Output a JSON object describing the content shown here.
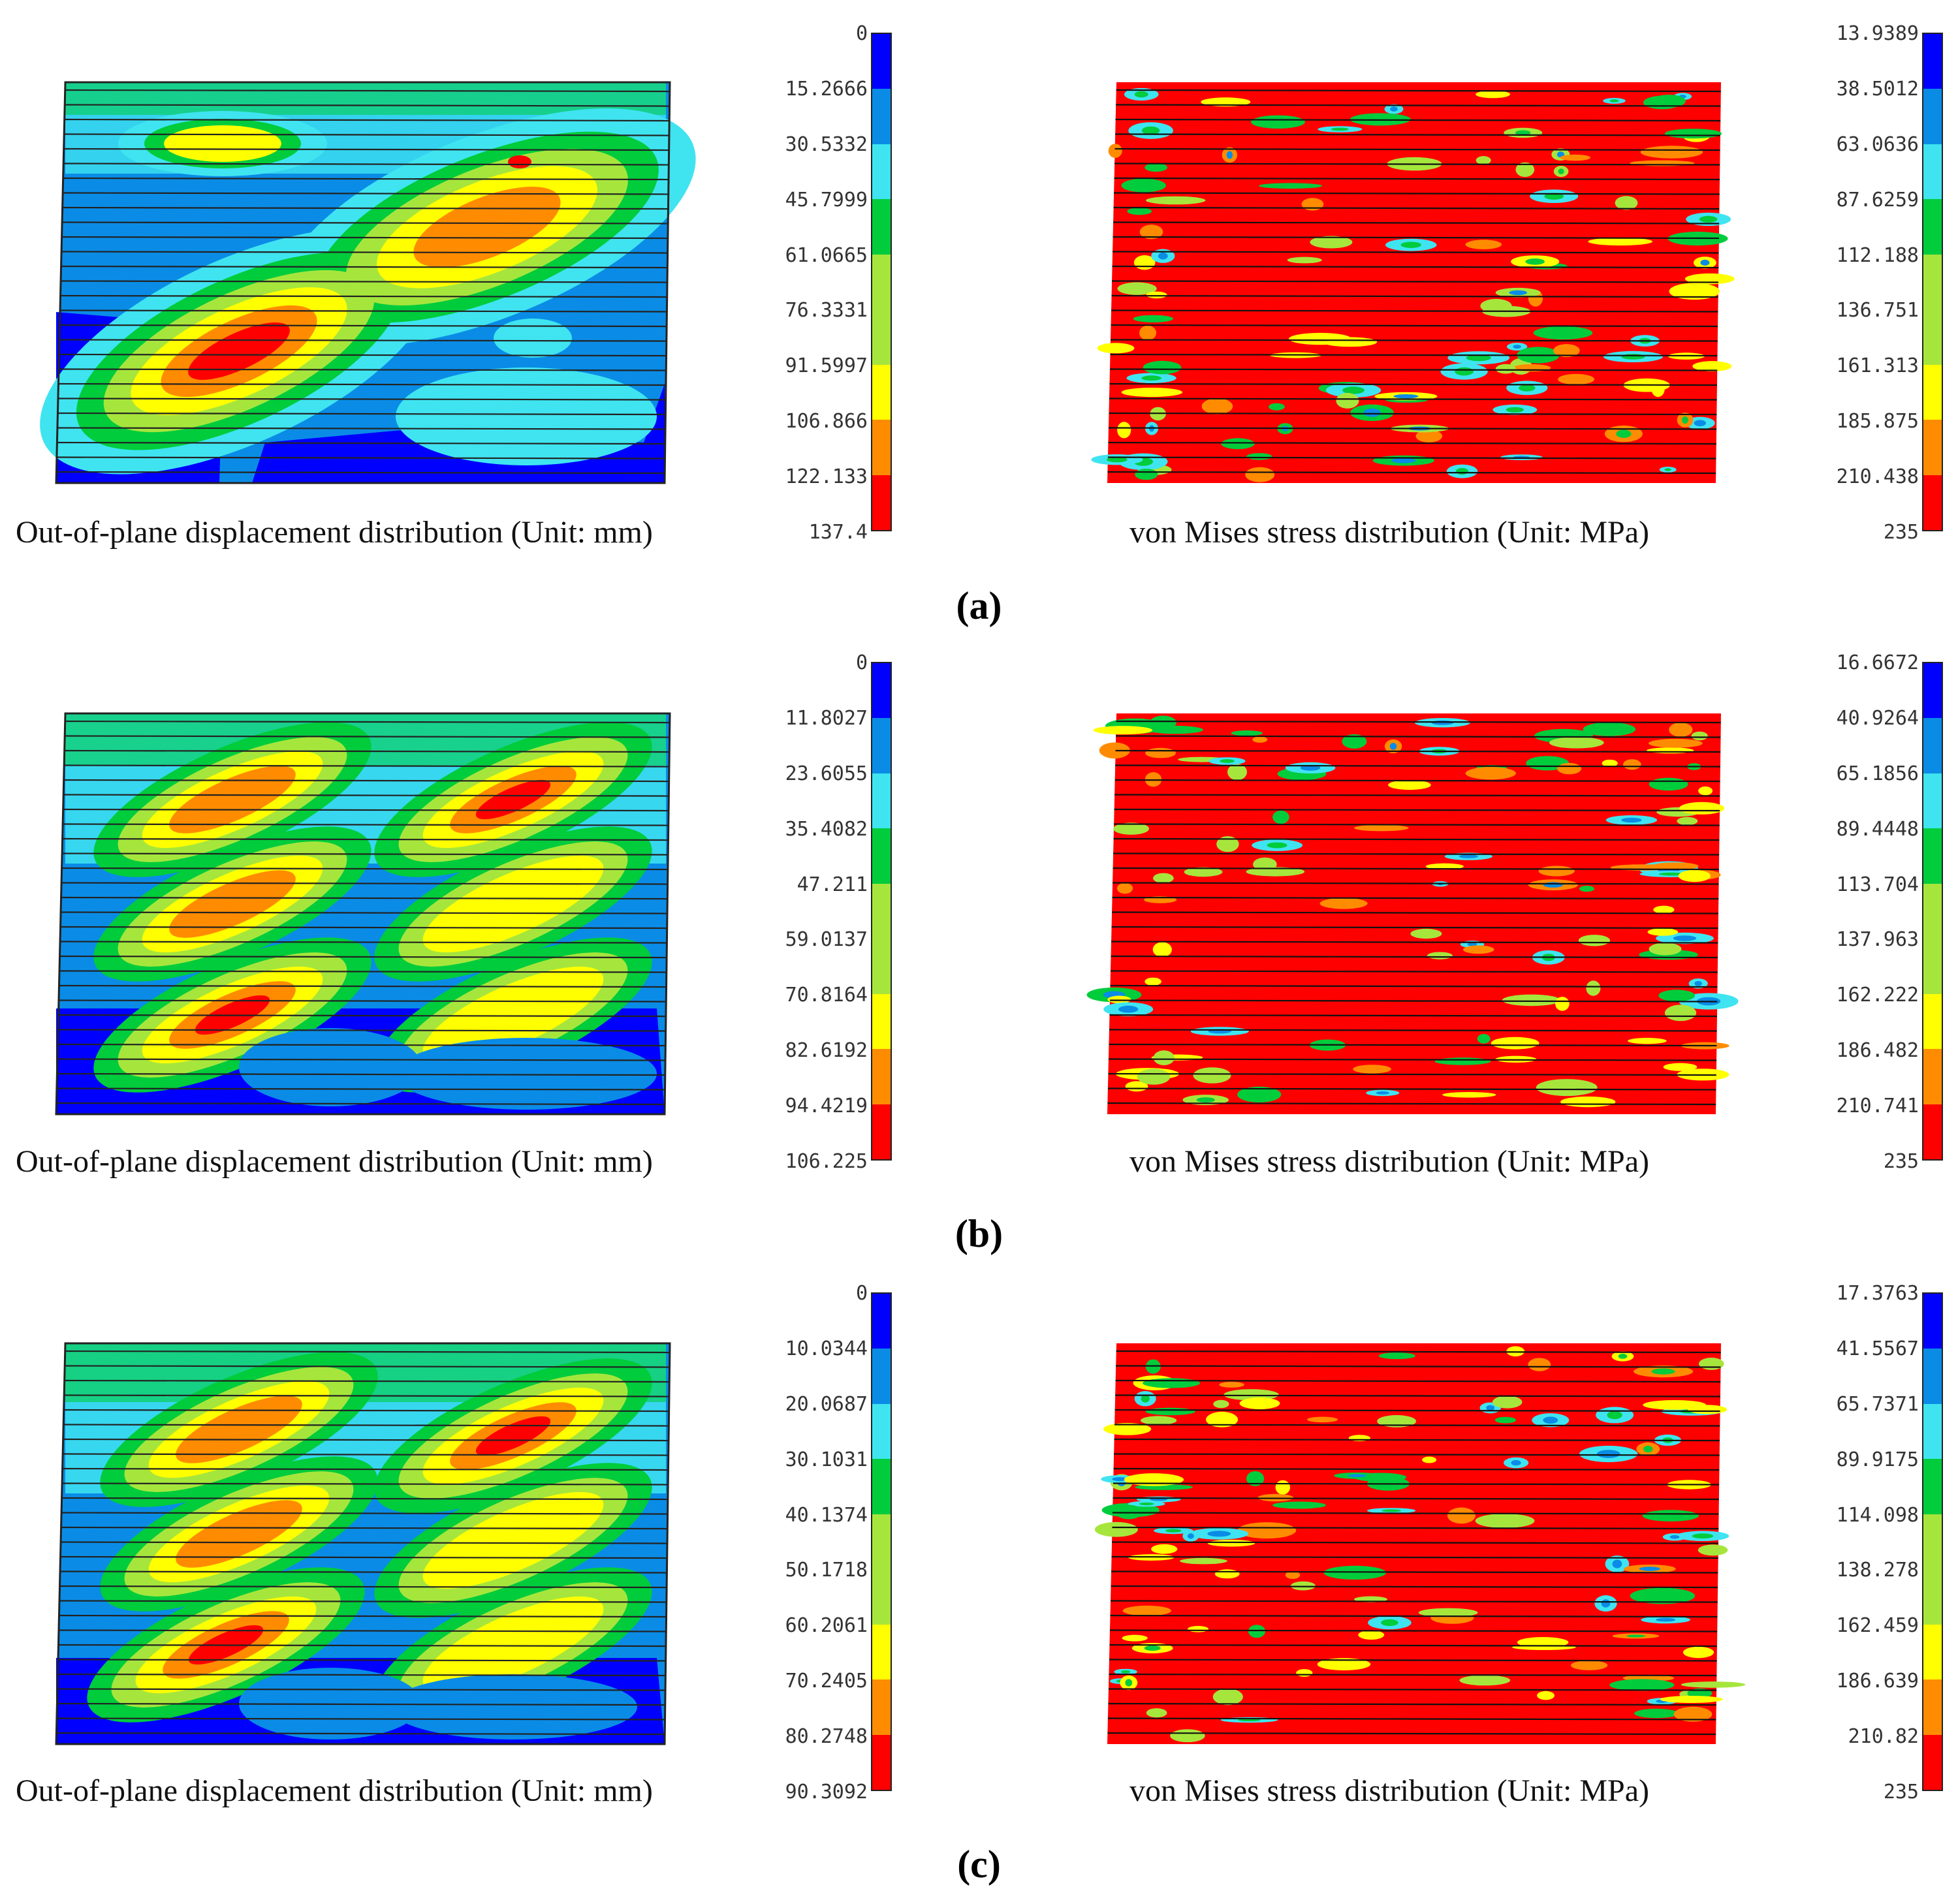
{
  "palette": [
    "#0000ff",
    "#0a8ce6",
    "#3fe4f0",
    "#00cc3c",
    "#a6e63c",
    "#ffff00",
    "#ff8c00",
    "#ff0000"
  ],
  "panels": [
    {
      "label": "(a)",
      "displacement": {
        "caption": "Out-of-plane displacement distribution (Unit: mm)",
        "legend_ticks": [
          "0",
          "15.2666",
          "30.5332",
          "45.7999",
          "61.0665",
          "76.3331",
          "91.5997",
          "106.866",
          "122.133",
          "137.4"
        ],
        "icon": "displacement-contour-plot"
      },
      "stress": {
        "caption": "von Mises stress distribution (Unit: MPa)",
        "legend_ticks": [
          "13.9389",
          "38.5012",
          "63.0636",
          "87.6259",
          "112.188",
          "136.751",
          "161.313",
          "185.875",
          "210.438",
          "235"
        ],
        "icon": "stress-contour-plot"
      }
    },
    {
      "label": "(b)",
      "displacement": {
        "caption": "Out-of-plane displacement distribution (Unit: mm)",
        "legend_ticks": [
          "0",
          "11.8027",
          "23.6055",
          "35.4082",
          "47.211",
          "59.0137",
          "70.8164",
          "82.6192",
          "94.4219",
          "106.225"
        ],
        "icon": "displacement-contour-plot"
      },
      "stress": {
        "caption": "von Mises stress distribution (Unit: MPa)",
        "legend_ticks": [
          "16.6672",
          "40.9264",
          "65.1856",
          "89.4448",
          "113.704",
          "137.963",
          "162.222",
          "186.482",
          "210.741",
          "235"
        ],
        "icon": "stress-contour-plot"
      }
    },
    {
      "label": "(c)",
      "displacement": {
        "caption": "Out-of-plane displacement distribution (Unit: mm)",
        "legend_ticks": [
          "0",
          "10.0344",
          "20.0687",
          "30.1031",
          "40.1374",
          "50.1718",
          "60.2061",
          "70.2405",
          "80.2748",
          "90.3092"
        ],
        "icon": "displacement-contour-plot"
      },
      "stress": {
        "caption": "von Mises stress distribution (Unit: MPa)",
        "legend_ticks": [
          "17.3763",
          "41.5567",
          "65.7371",
          "89.9175",
          "114.098",
          "138.278",
          "162.459",
          "186.639",
          "210.82",
          "235"
        ],
        "icon": "stress-contour-plot"
      }
    }
  ]
}
